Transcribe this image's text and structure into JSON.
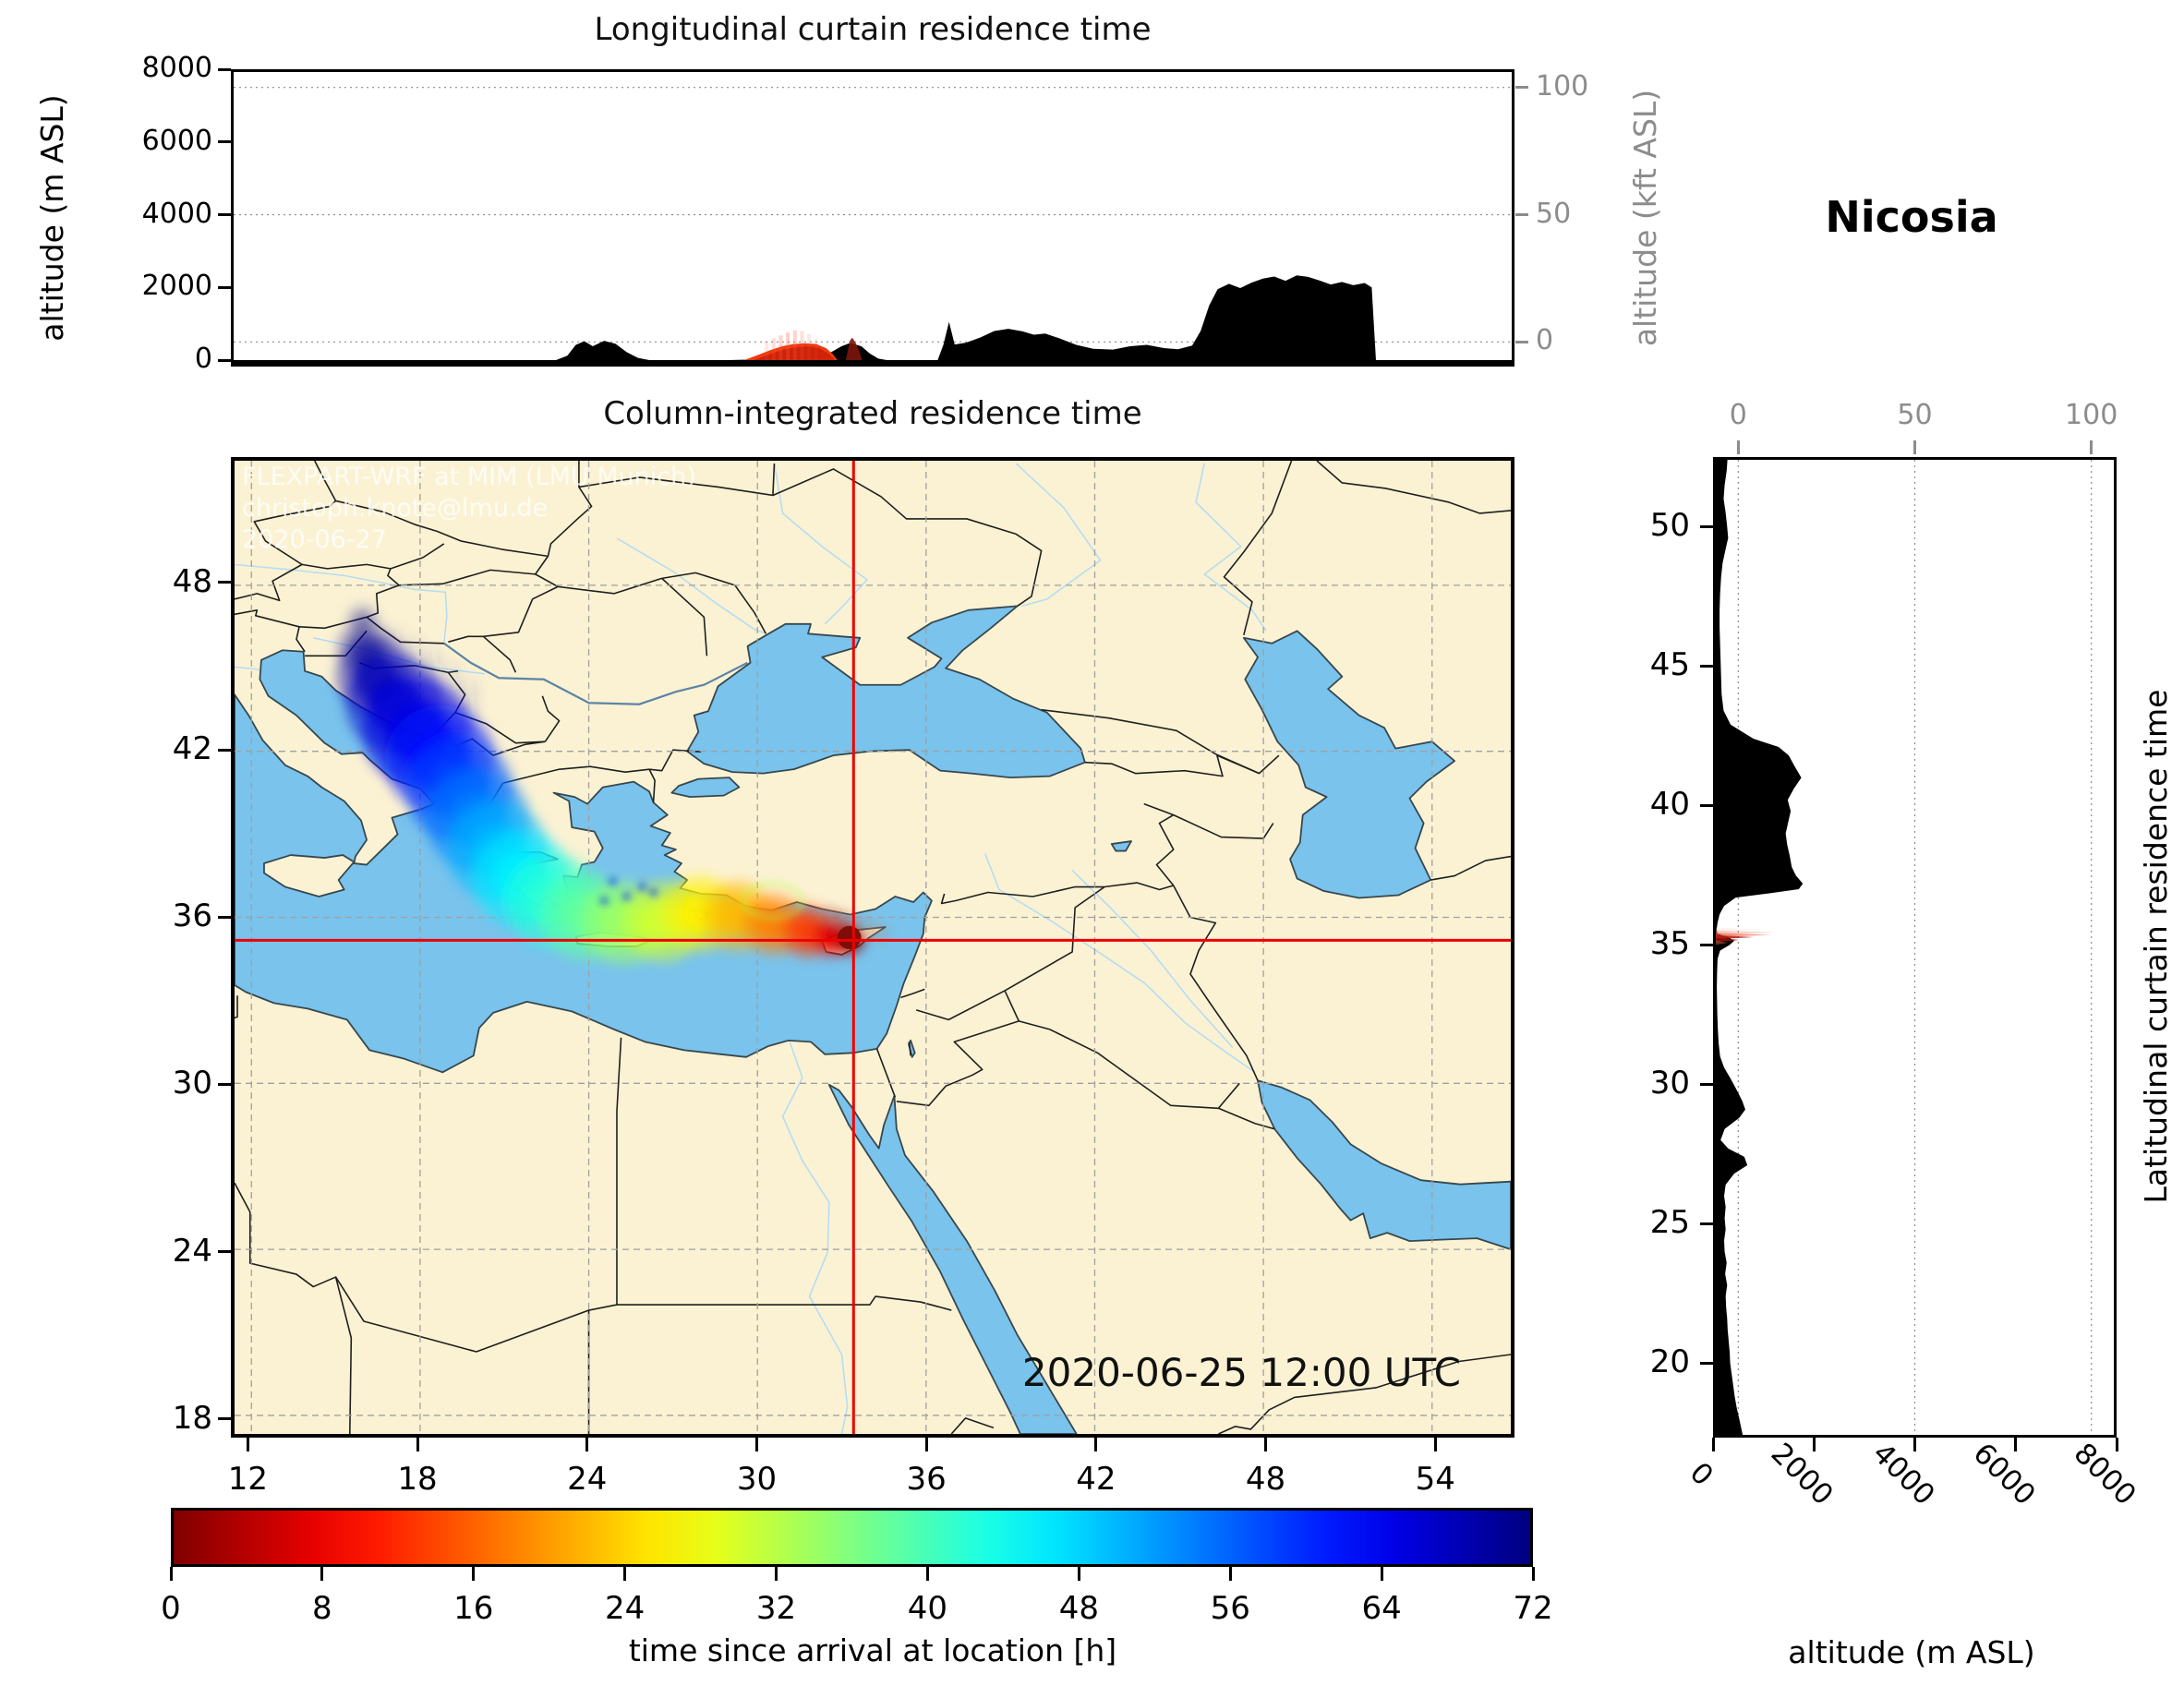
{
  "header": {
    "station": "Nicosia"
  },
  "panels": {
    "longitudinal": {
      "title": "Longitudinal curtain residence time",
      "ylabel_left": "altitude (m ASL)",
      "ylabel_right": "altitude (kft ASL)",
      "yticks_left": [
        "8000",
        "6000",
        "4000",
        "2000",
        "0"
      ],
      "yticks_left_values": [
        8000,
        6000,
        4000,
        2000,
        0
      ],
      "yticks_right": [
        "100",
        "50",
        "0"
      ],
      "yticks_right_values": [
        100,
        50,
        0
      ]
    },
    "map": {
      "title": "Column-integrated residence time",
      "xticks": [
        "12",
        "18",
        "24",
        "30",
        "36",
        "42",
        "48",
        "54"
      ],
      "xtick_values": [
        12,
        18,
        24,
        30,
        36,
        42,
        48,
        54
      ],
      "yticks": [
        "48",
        "42",
        "36",
        "30",
        "24",
        "18"
      ],
      "ytick_values": [
        48,
        42,
        36,
        30,
        24,
        18
      ],
      "watermark": [
        "FLEXPART-WRF at MIM (LMU Munich)",
        "christoph.knote@lmu.de",
        "2020-06-27"
      ],
      "datetime_label": "2020-06-25 12:00 UTC"
    },
    "latitudinal": {
      "title_right": "Latitudinal curtain residence time",
      "xlabel": "altitude (m ASL)",
      "xticks_bottom": [
        "0",
        "2000",
        "4000",
        "6000",
        "8000"
      ],
      "xticks_bottom_values": [
        0,
        2000,
        4000,
        6000,
        8000
      ],
      "xticks_top": [
        "0",
        "50",
        "100"
      ],
      "xticks_top_values": [
        0,
        50,
        100
      ],
      "yticks": [
        "50",
        "45",
        "40",
        "35",
        "30",
        "25",
        "20"
      ],
      "ytick_values": [
        50,
        45,
        40,
        35,
        30,
        25,
        20
      ]
    },
    "colorbar": {
      "label": "time since arrival at location [h]",
      "ticks": [
        "0",
        "8",
        "16",
        "24",
        "32",
        "40",
        "48",
        "56",
        "64",
        "72"
      ],
      "tick_values": [
        0,
        8,
        16,
        24,
        32,
        40,
        48,
        56,
        64,
        72
      ]
    }
  },
  "colors": {
    "land": "#FBF2D3",
    "water": "#79C3EC",
    "coastline": "#37474F",
    "border": "#1F1F1F",
    "river_light": "#B5DDF2",
    "river_dark": "#5B84A6",
    "gridline": "#A0A0A0",
    "dotted_grid": "#8C8C8C",
    "crosshair": "#EE0000",
    "terrain": "#000000",
    "axis_gray": "#8C8C8C"
  },
  "chart_data": {
    "type": "heatmap",
    "description": "FLEXPART backward-trajectory residence time for receptor Nicosia: column-integrated map plus longitudinal and latitudinal altitude curtains",
    "receptor": {
      "name": "Nicosia",
      "lon": 33.42,
      "lat": 35.17
    },
    "datetime": "2020-06-25 12:00 UTC",
    "map": {
      "lon_range": [
        11.4,
        56.8
      ],
      "lat_range": [
        17.33,
        52.5
      ],
      "lon_ticks": [
        12,
        18,
        24,
        30,
        36,
        42,
        48,
        54
      ],
      "lat_ticks": [
        18,
        24,
        30,
        36,
        42,
        48
      ]
    },
    "colorbar": {
      "label": "time since arrival at location [h]",
      "range": [
        0,
        72
      ],
      "ticks": [
        0,
        8,
        16,
        24,
        32,
        40,
        48,
        56,
        64,
        72
      ],
      "colormap": "jet_r"
    },
    "trajectory_plume": [
      [
        15.95,
        46.75,
        72,
        0.55,
        0.35
      ],
      [
        16.05,
        45.7,
        71,
        1.0,
        0.6
      ],
      [
        16.4,
        44.7,
        69,
        1.4,
        0.8
      ],
      [
        17.1,
        43.7,
        67,
        1.75,
        0.9
      ],
      [
        17.9,
        42.7,
        65,
        1.95,
        1
      ],
      [
        18.7,
        41.7,
        62,
        1.95,
        1
      ],
      [
        19.4,
        40.6,
        58,
        1.9,
        1
      ],
      [
        20.05,
        39.5,
        54,
        1.85,
        1
      ],
      [
        20.75,
        38.4,
        50,
        1.8,
        1
      ],
      [
        21.6,
        37.4,
        46,
        1.75,
        1
      ],
      [
        22.7,
        36.6,
        42,
        1.7,
        1
      ],
      [
        23.9,
        36.05,
        38,
        1.6,
        1
      ],
      [
        25.25,
        35.8,
        34,
        1.5,
        1
      ],
      [
        26.65,
        35.85,
        30,
        1.45,
        1
      ],
      [
        27.95,
        36.15,
        26,
        1.35,
        1
      ],
      [
        29.3,
        36.05,
        22,
        1.25,
        1
      ],
      [
        30.6,
        35.75,
        18,
        1.1,
        1
      ],
      [
        31.8,
        35.5,
        13,
        0.95,
        1
      ],
      [
        32.7,
        35.32,
        7,
        0.75,
        1
      ],
      [
        33.25,
        35.2,
        2.5,
        0.55,
        1
      ],
      [
        33.42,
        35.17,
        0.5,
        0.38,
        1
      ]
    ],
    "plume_wisp_lines": [
      [
        [
          17.15,
          46.4
        ],
        [
          17.45,
          44.9
        ]
      ],
      [
        [
          17.8,
          46.1
        ],
        [
          18.05,
          44.5
        ]
      ],
      [
        [
          18.5,
          45.7
        ],
        [
          18.7,
          44.1
        ]
      ],
      [
        [
          19.15,
          45.2
        ],
        [
          19.3,
          43.7
        ]
      ],
      [
        [
          19.8,
          44.6
        ],
        [
          19.9,
          43.3
        ]
      ],
      [
        [
          16.6,
          45.9
        ],
        [
          16.8,
          44.8
        ]
      ]
    ],
    "aegean_specks": [
      [
        24.85,
        37.3
      ],
      [
        25.35,
        36.75
      ],
      [
        25.9,
        37.1
      ],
      [
        24.55,
        36.6
      ],
      [
        26.3,
        36.9
      ]
    ],
    "loop_arc": {
      "cx": 30.55,
      "cy": 36.6,
      "rx": 1.05,
      "ry": 0.62,
      "hours": 32
    },
    "warm_haze": [
      [
        33.1,
        35.85,
        0.5
      ],
      [
        33.8,
        35.6,
        0.45
      ],
      [
        34.35,
        35.45,
        0.4
      ],
      [
        32.6,
        36.05,
        0.45
      ]
    ],
    "longitudinal_curtain": {
      "alt_ticks_m": [
        0,
        2000,
        4000,
        6000,
        8000
      ],
      "kft_ticks": [
        0,
        50,
        100
      ],
      "terrain_profile": [
        [
          11.4,
          0
        ],
        [
          22.9,
          0
        ],
        [
          23.3,
          120
        ],
        [
          23.6,
          420
        ],
        [
          23.9,
          520
        ],
        [
          24.2,
          380
        ],
        [
          24.6,
          530
        ],
        [
          25.0,
          450
        ],
        [
          25.4,
          220
        ],
        [
          25.8,
          60
        ],
        [
          26.2,
          0
        ],
        [
          29.0,
          0
        ],
        [
          30.0,
          20
        ],
        [
          31.0,
          40
        ],
        [
          32.0,
          60
        ],
        [
          32.5,
          160
        ],
        [
          33.0,
          380
        ],
        [
          33.3,
          470
        ],
        [
          33.7,
          380
        ],
        [
          34.0,
          180
        ],
        [
          34.3,
          40
        ],
        [
          34.6,
          0
        ],
        [
          36.4,
          0
        ],
        [
          36.6,
          420
        ],
        [
          36.8,
          1050
        ],
        [
          37.0,
          430
        ],
        [
          37.4,
          480
        ],
        [
          37.9,
          620
        ],
        [
          38.4,
          800
        ],
        [
          38.9,
          860
        ],
        [
          39.4,
          790
        ],
        [
          39.8,
          700
        ],
        [
          40.2,
          730
        ],
        [
          40.7,
          600
        ],
        [
          41.3,
          420
        ],
        [
          41.9,
          310
        ],
        [
          42.6,
          290
        ],
        [
          43.2,
          380
        ],
        [
          43.8,
          420
        ],
        [
          44.4,
          330
        ],
        [
          44.9,
          300
        ],
        [
          45.4,
          400
        ],
        [
          45.7,
          800
        ],
        [
          46.0,
          1500
        ],
        [
          46.3,
          1950
        ],
        [
          46.7,
          2100
        ],
        [
          47.1,
          1980
        ],
        [
          47.5,
          2130
        ],
        [
          47.9,
          2240
        ],
        [
          48.3,
          2300
        ],
        [
          48.7,
          2180
        ],
        [
          49.1,
          2330
        ],
        [
          49.5,
          2290
        ],
        [
          49.9,
          2190
        ],
        [
          50.3,
          2080
        ],
        [
          50.7,
          2150
        ],
        [
          51.1,
          2060
        ],
        [
          51.5,
          2120
        ],
        [
          51.75,
          2000
        ],
        [
          51.9,
          0
        ],
        [
          56.8,
          0
        ]
      ],
      "plume_polygon": [
        [
          29.55,
          0
        ],
        [
          29.8,
          70
        ],
        [
          30.1,
          160
        ],
        [
          30.5,
          280
        ],
        [
          30.9,
          380
        ],
        [
          31.3,
          440
        ],
        [
          31.7,
          465
        ],
        [
          32.1,
          440
        ],
        [
          32.45,
          330
        ],
        [
          32.7,
          160
        ],
        [
          32.85,
          0
        ]
      ],
      "plume_core": [
        [
          29.9,
          0
        ],
        [
          30.2,
          90
        ],
        [
          30.6,
          200
        ],
        [
          31.0,
          300
        ],
        [
          31.4,
          360
        ],
        [
          31.8,
          380
        ],
        [
          32.2,
          330
        ],
        [
          32.5,
          200
        ],
        [
          32.7,
          60
        ],
        [
          32.75,
          0
        ]
      ],
      "plume_streaks": [
        [
          30.35,
          520,
          0.14
        ],
        [
          30.6,
          600,
          0.2
        ],
        [
          30.85,
          680,
          0.26
        ],
        [
          31.1,
          760,
          0.3
        ],
        [
          31.35,
          820,
          0.26
        ],
        [
          31.6,
          800,
          0.2
        ],
        [
          31.85,
          720,
          0.15
        ],
        [
          32.1,
          600,
          0.1
        ]
      ],
      "dark_spike": [
        [
          33.15,
          0
        ],
        [
          33.3,
          540
        ],
        [
          33.38,
          620
        ],
        [
          33.5,
          470
        ],
        [
          33.62,
          260
        ],
        [
          33.72,
          0
        ]
      ]
    },
    "latitudinal_curtain": {
      "alt_ticks_m": [
        0,
        2000,
        4000,
        6000,
        8000
      ],
      "kft_ticks": [
        0,
        50,
        100
      ],
      "terrain_profile": [
        [
          52.5,
          290
        ],
        [
          52.0,
          270
        ],
        [
          51.5,
          230
        ],
        [
          51.0,
          210
        ],
        [
          50.5,
          250
        ],
        [
          50.0,
          280
        ],
        [
          49.6,
          300
        ],
        [
          49.2,
          250
        ],
        [
          48.7,
          190
        ],
        [
          48.2,
          160
        ],
        [
          47.6,
          140
        ],
        [
          47.0,
          130
        ],
        [
          46.4,
          130
        ],
        [
          45.8,
          140
        ],
        [
          45.2,
          150
        ],
        [
          44.6,
          160
        ],
        [
          44.0,
          170
        ],
        [
          43.4,
          210
        ],
        [
          42.9,
          350
        ],
        [
          42.4,
          800
        ],
        [
          42.1,
          1300
        ],
        [
          41.8,
          1500
        ],
        [
          41.4,
          1620
        ],
        [
          41.0,
          1750
        ],
        [
          40.6,
          1600
        ],
        [
          40.2,
          1480
        ],
        [
          39.8,
          1540
        ],
        [
          39.4,
          1490
        ],
        [
          39.0,
          1440
        ],
        [
          38.6,
          1470
        ],
        [
          38.2,
          1520
        ],
        [
          37.8,
          1560
        ],
        [
          37.5,
          1640
        ],
        [
          37.2,
          1780
        ],
        [
          37.0,
          1700
        ],
        [
          36.85,
          1100
        ],
        [
          36.7,
          450
        ],
        [
          36.4,
          220
        ],
        [
          36.1,
          130
        ],
        [
          35.8,
          90
        ],
        [
          35.55,
          70
        ],
        [
          35.4,
          90
        ],
        [
          35.3,
          280
        ],
        [
          35.15,
          420
        ],
        [
          35.0,
          330
        ],
        [
          34.8,
          140
        ],
        [
          34.5,
          90
        ],
        [
          34.0,
          80
        ],
        [
          33.5,
          75
        ],
        [
          33.0,
          80
        ],
        [
          32.5,
          85
        ],
        [
          32.0,
          95
        ],
        [
          31.5,
          110
        ],
        [
          31.0,
          140
        ],
        [
          30.6,
          220
        ],
        [
          30.2,
          350
        ],
        [
          29.8,
          470
        ],
        [
          29.4,
          580
        ],
        [
          29.1,
          640
        ],
        [
          28.8,
          520
        ],
        [
          28.4,
          230
        ],
        [
          28.0,
          150
        ],
        [
          27.7,
          300
        ],
        [
          27.4,
          620
        ],
        [
          27.1,
          680
        ],
        [
          26.8,
          420
        ],
        [
          26.4,
          250
        ],
        [
          26.0,
          220
        ],
        [
          25.6,
          250
        ],
        [
          25.2,
          230
        ],
        [
          24.8,
          250
        ],
        [
          24.4,
          220
        ],
        [
          24.0,
          230
        ],
        [
          23.6,
          270
        ],
        [
          23.2,
          240
        ],
        [
          22.8,
          280
        ],
        [
          22.4,
          250
        ],
        [
          22.0,
          260
        ],
        [
          21.6,
          280
        ],
        [
          21.2,
          290
        ],
        [
          20.8,
          310
        ],
        [
          20.4,
          330
        ],
        [
          20.0,
          340
        ],
        [
          19.6,
          370
        ],
        [
          19.2,
          400
        ],
        [
          18.8,
          430
        ],
        [
          18.4,
          470
        ],
        [
          18.0,
          520
        ],
        [
          17.33,
          600
        ]
      ],
      "plume_rows": [
        {
          "lat": 35.55,
          "m": 900,
          "alpha": 0.18,
          "color": "#F4B6A8"
        },
        {
          "lat": 35.45,
          "m": 1250,
          "alpha": 0.38,
          "color": "#F08A72"
        },
        {
          "lat": 35.36,
          "m": 1150,
          "alpha": 0.6,
          "color": "#E85540"
        },
        {
          "lat": 35.28,
          "m": 800,
          "alpha": 0.88,
          "color": "#C01E10"
        },
        {
          "lat": 35.18,
          "m": 520,
          "alpha": 0.95,
          "color": "#8C1208"
        },
        {
          "lat": 35.08,
          "m": 300,
          "alpha": 0.5,
          "color": "#D86A54"
        }
      ]
    }
  }
}
